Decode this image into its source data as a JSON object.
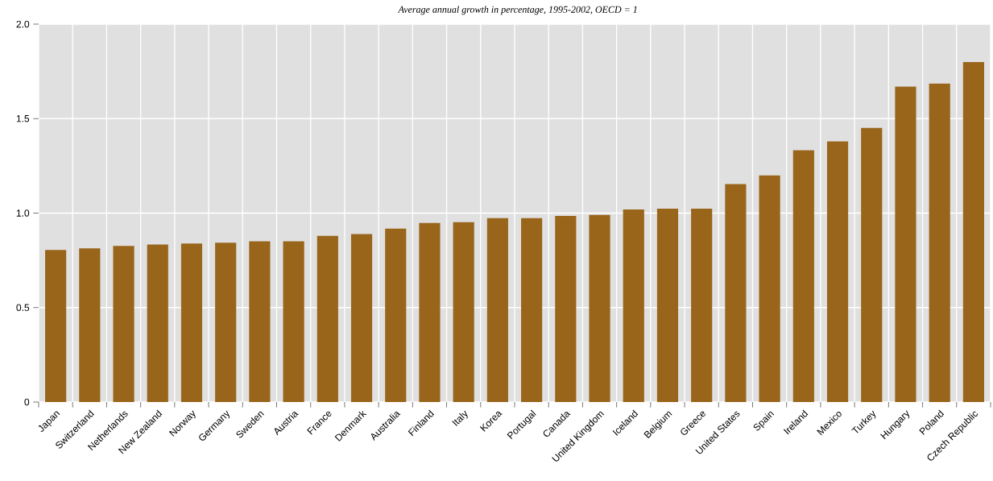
{
  "chart_data": {
    "type": "bar",
    "title": "Average annual growth in percentage, 1995-2002, OECD = 1",
    "categories": [
      "Japan",
      "Switzerland",
      "Netherlands",
      "New Zealand",
      "Norway",
      "Germany",
      "Sweden",
      "Austria",
      "France",
      "Denmark",
      "Australia",
      "Finland",
      "Italy",
      "Korea",
      "Portugal",
      "Canada",
      "United Kingdom",
      "Iceland",
      "Belgium",
      "Greece",
      "United States",
      "Spain",
      "Ireland",
      "Mexico",
      "Turkey",
      "Hungary",
      "Poland",
      "Czech Republic"
    ],
    "values": [
      0.805,
      0.813,
      0.826,
      0.834,
      0.839,
      0.843,
      0.851,
      0.851,
      0.88,
      0.889,
      0.918,
      0.948,
      0.952,
      0.973,
      0.973,
      0.985,
      0.99,
      1.019,
      1.023,
      1.023,
      1.153,
      1.199,
      1.333,
      1.379,
      1.451,
      1.669,
      1.686,
      1.8
    ],
    "color": "#99651b",
    "ylim": [
      0,
      2.0
    ],
    "yticks": [
      0,
      0.5,
      {
        "value": 1.0,
        "label": "1.0"
      },
      1.5,
      {
        "value": 2.0,
        "label": "2.0"
      }
    ],
    "grid": true
  }
}
